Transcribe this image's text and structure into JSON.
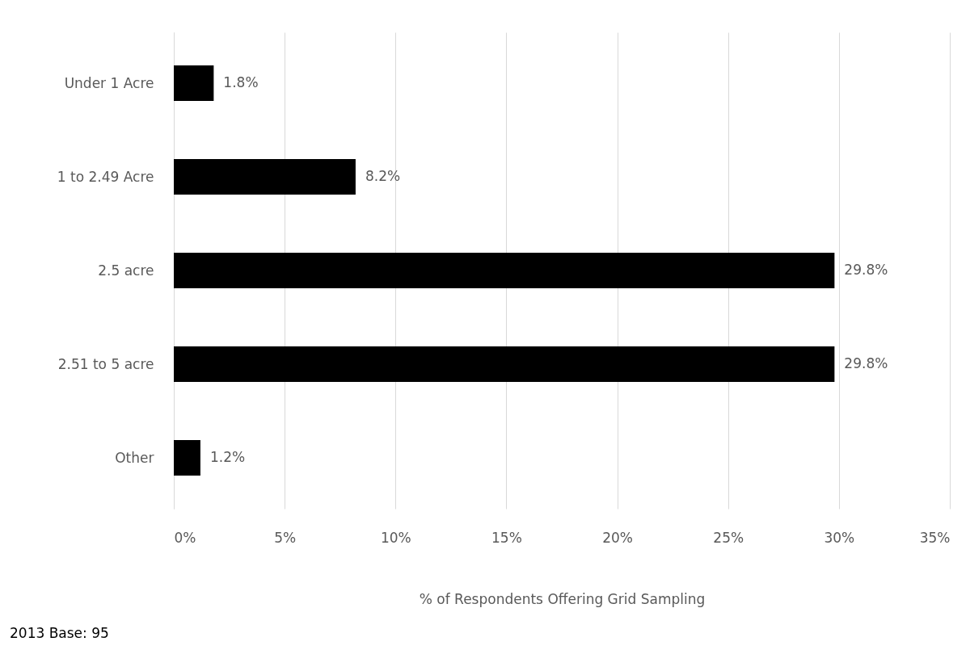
{
  "chart_data": {
    "type": "bar",
    "orientation": "horizontal",
    "xlabel": "% of Respondents Offering Grid Sampling",
    "categories": [
      "Under 1 Acre",
      "1 to 2.49 Acre",
      "2.5 acre",
      "2.51 to 5 acre",
      "Other"
    ],
    "values": [
      1.8,
      8.2,
      29.8,
      29.8,
      1.2
    ],
    "value_labels": [
      "1.8%",
      "8.2%",
      "29.8%",
      "29.8%",
      "1.2%"
    ],
    "color": "#000000",
    "xlim": [
      0,
      35
    ],
    "xticks": [
      {
        "value": 0,
        "label": "0%"
      },
      {
        "value": 5,
        "label": "5%"
      },
      {
        "value": 10,
        "label": "10%"
      },
      {
        "value": 15,
        "label": "15%"
      },
      {
        "value": 20,
        "label": "20%"
      },
      {
        "value": 25,
        "label": "25%"
      },
      {
        "value": 30,
        "label": "30%"
      },
      {
        "value": 35,
        "label": "35%"
      }
    ],
    "grid": "x",
    "legend": false,
    "annotations": [
      "2013 Base: 95"
    ]
  }
}
